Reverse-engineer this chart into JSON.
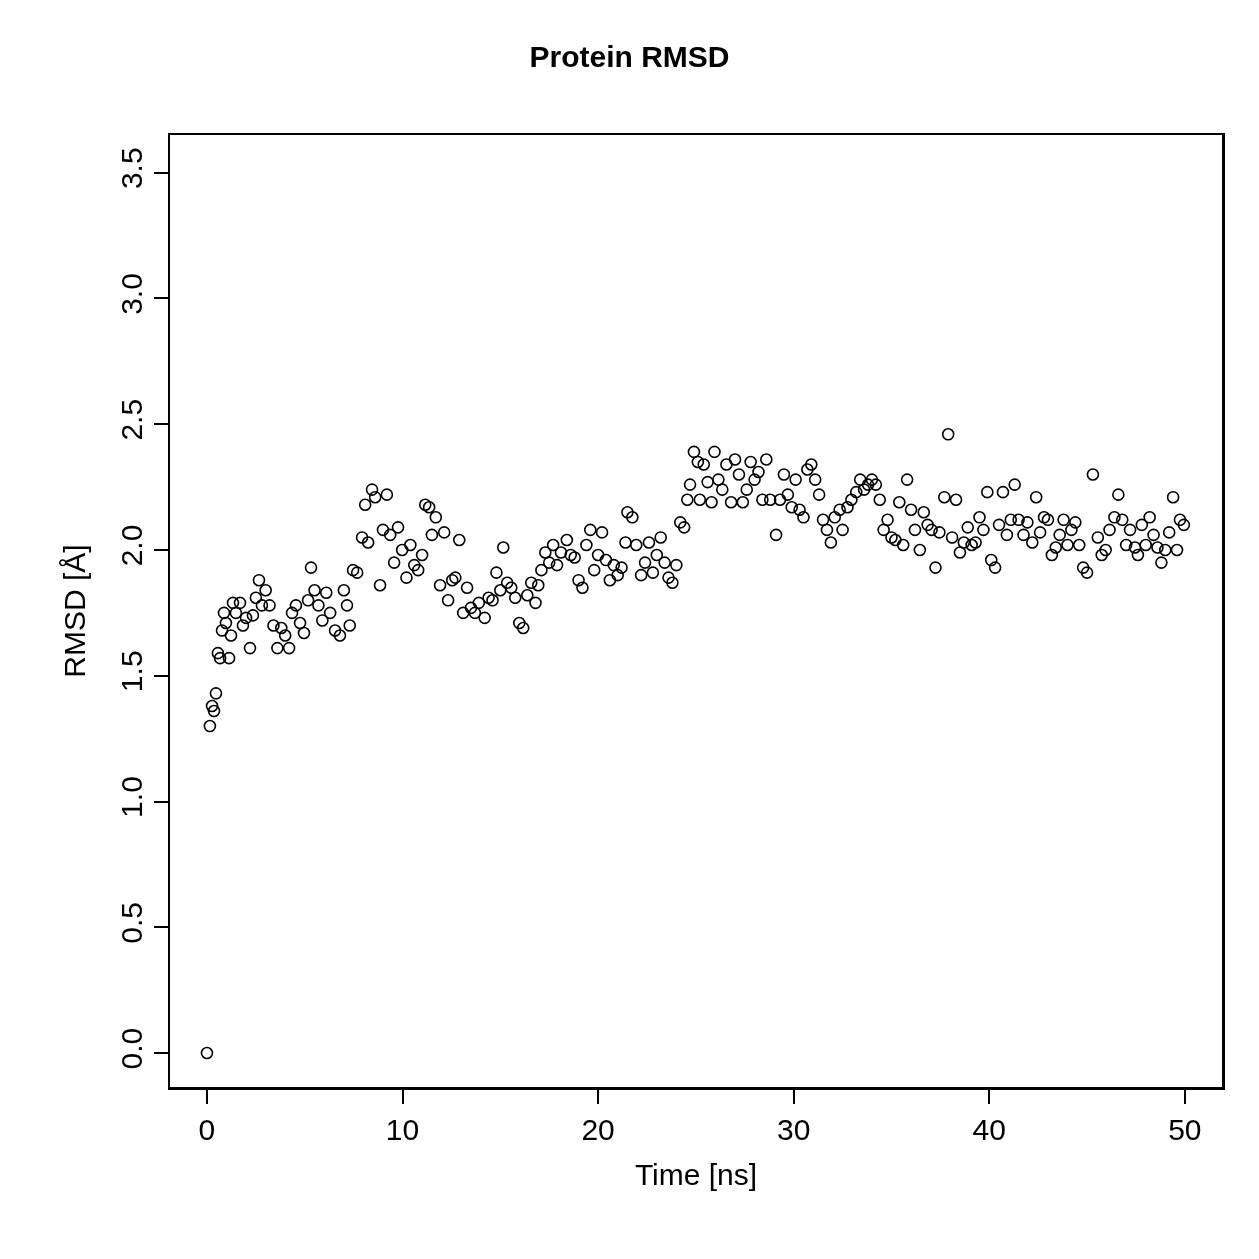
{
  "chart_data": {
    "type": "scatter",
    "title": "Protein RMSD",
    "xlabel": "Time [ns]",
    "ylabel": "RMSD [Å]",
    "x": [
      0,
      0.15,
      0.26,
      0.36,
      0.46,
      0.56,
      0.67,
      0.77,
      0.87,
      0.97,
      1.13,
      1.23,
      1.33,
      1.48,
      1.69,
      1.84,
      2.0,
      2.2,
      2.35,
      2.5,
      2.66,
      2.81,
      3.0,
      3.2,
      3.4,
      3.6,
      3.8,
      4.0,
      4.2,
      4.35,
      4.55,
      4.76,
      4.96,
      5.17,
      5.32,
      5.5,
      5.7,
      5.9,
      6.1,
      6.3,
      6.55,
      6.8,
      7.0,
      7.16,
      7.3,
      7.47,
      7.68,
      7.93,
      8.09,
      8.24,
      8.44,
      8.6,
      8.85,
      9.0,
      9.2,
      9.37,
      9.57,
      9.77,
      9.98,
      10.2,
      10.4,
      10.6,
      10.8,
      11.0,
      11.16,
      11.36,
      11.5,
      11.7,
      11.92,
      12.13,
      12.33,
      12.54,
      12.7,
      12.9,
      13.1,
      13.3,
      13.5,
      13.7,
      13.9,
      14.2,
      14.4,
      14.6,
      14.8,
      15.0,
      15.15,
      15.35,
      15.56,
      15.76,
      15.97,
      16.17,
      16.38,
      16.58,
      16.8,
      16.94,
      17.1,
      17.3,
      17.5,
      17.7,
      17.9,
      18.1,
      18.4,
      18.6,
      18.8,
      19.0,
      19.2,
      19.4,
      19.6,
      19.8,
      20.0,
      20.2,
      20.4,
      20.6,
      20.8,
      21.0,
      21.2,
      21.4,
      21.5,
      21.75,
      21.95,
      22.2,
      22.4,
      22.6,
      22.8,
      23.0,
      23.2,
      23.4,
      23.6,
      23.8,
      24.0,
      24.2,
      24.4,
      24.56,
      24.7,
      24.9,
      25.1,
      25.2,
      25.4,
      25.6,
      25.8,
      25.95,
      26.15,
      26.35,
      26.56,
      26.8,
      27.0,
      27.2,
      27.4,
      27.6,
      27.8,
      28.0,
      28.2,
      28.4,
      28.6,
      28.8,
      29.1,
      29.3,
      29.5,
      29.7,
      29.9,
      30.1,
      30.3,
      30.5,
      30.7,
      30.9,
      31.1,
      31.3,
      31.5,
      31.7,
      31.9,
      32.1,
      32.35,
      32.5,
      32.75,
      32.95,
      33.2,
      33.4,
      33.6,
      33.8,
      34.0,
      34.2,
      34.4,
      34.6,
      34.8,
      35.0,
      35.2,
      35.4,
      35.6,
      35.8,
      36.0,
      36.2,
      36.45,
      36.65,
      36.85,
      37.05,
      37.25,
      37.45,
      37.7,
      37.9,
      38.1,
      38.3,
      38.5,
      38.7,
      38.9,
      39.1,
      39.3,
      39.5,
      39.7,
      39.9,
      40.1,
      40.3,
      40.5,
      40.7,
      40.9,
      41.1,
      41.3,
      41.5,
      41.75,
      41.95,
      42.2,
      42.4,
      42.6,
      42.8,
      43.0,
      43.2,
      43.4,
      43.6,
      43.8,
      44.0,
      44.2,
      44.4,
      44.6,
      44.8,
      45.0,
      45.3,
      45.55,
      45.75,
      45.95,
      46.15,
      46.4,
      46.6,
      46.8,
      47.0,
      47.2,
      47.45,
      47.6,
      47.8,
      48.0,
      48.2,
      48.4,
      48.6,
      48.8,
      49.0,
      49.2,
      49.4,
      49.6,
      49.75,
      49.95
    ],
    "values": [
      0.0,
      1.3,
      1.38,
      1.36,
      1.43,
      1.59,
      1.57,
      1.68,
      1.75,
      1.71,
      1.57,
      1.66,
      1.79,
      1.75,
      1.79,
      1.7,
      1.73,
      1.61,
      1.74,
      1.81,
      1.88,
      1.78,
      1.84,
      1.78,
      1.7,
      1.61,
      1.69,
      1.66,
      1.61,
      1.75,
      1.78,
      1.71,
      1.67,
      1.8,
      1.93,
      1.84,
      1.78,
      1.72,
      1.83,
      1.75,
      1.68,
      1.66,
      1.84,
      1.78,
      1.7,
      1.92,
      1.91,
      2.05,
      2.18,
      2.03,
      2.24,
      2.21,
      1.86,
      2.08,
      2.22,
      2.06,
      1.95,
      2.09,
      2.0,
      1.89,
      2.02,
      1.94,
      1.92,
      1.98,
      2.18,
      2.17,
      2.06,
      2.13,
      1.86,
      2.07,
      1.8,
      1.88,
      1.89,
      2.04,
      1.75,
      1.85,
      1.77,
      1.75,
      1.79,
      1.73,
      1.81,
      1.8,
      1.91,
      1.84,
      2.01,
      1.87,
      1.85,
      1.81,
      1.71,
      1.69,
      1.82,
      1.87,
      1.79,
      1.86,
      1.92,
      1.99,
      1.95,
      2.02,
      1.94,
      1.99,
      2.04,
      1.98,
      1.97,
      1.88,
      1.85,
      2.02,
      2.08,
      1.92,
      1.98,
      2.07,
      1.96,
      1.88,
      1.94,
      1.9,
      1.93,
      2.03,
      2.15,
      2.13,
      2.02,
      1.9,
      1.95,
      2.03,
      1.91,
      1.98,
      2.05,
      1.95,
      1.89,
      1.87,
      1.94,
      2.11,
      2.09,
      2.2,
      2.26,
      2.39,
      2.35,
      2.2,
      2.34,
      2.27,
      2.19,
      2.39,
      2.28,
      2.24,
      2.34,
      2.19,
      2.36,
      2.3,
      2.19,
      2.24,
      2.35,
      2.28,
      2.31,
      2.2,
      2.36,
      2.2,
      2.06,
      2.2,
      2.3,
      2.22,
      2.17,
      2.28,
      2.16,
      2.13,
      2.32,
      2.34,
      2.28,
      2.22,
      2.12,
      2.08,
      2.03,
      2.13,
      2.16,
      2.08,
      2.17,
      2.2,
      2.23,
      2.28,
      2.24,
      2.26,
      2.28,
      2.26,
      2.2,
      2.08,
      2.12,
      2.05,
      2.04,
      2.19,
      2.02,
      2.28,
      2.16,
      2.08,
      2.0,
      2.15,
      2.1,
      2.08,
      1.93,
      2.07,
      2.21,
      2.46,
      2.05,
      2.2,
      1.99,
      2.03,
      2.09,
      2.02,
      2.03,
      2.13,
      2.08,
      2.23,
      1.96,
      1.93,
      2.1,
      2.23,
      2.06,
      2.12,
      2.26,
      2.12,
      2.06,
      2.11,
      2.03,
      2.21,
      2.07,
      2.13,
      2.12,
      1.98,
      2.01,
      2.06,
      2.12,
      2.02,
      2.08,
      2.11,
      2.02,
      1.93,
      1.91,
      2.3,
      2.05,
      1.98,
      2.0,
      2.08,
      2.13,
      2.22,
      2.12,
      2.02,
      2.08,
      2.01,
      1.98,
      2.1,
      2.02,
      2.13,
      2.06,
      2.01,
      1.95,
      2.0,
      2.07,
      2.21,
      2.0,
      2.12,
      2.1
    ],
    "color": "#000000",
    "marker": "circle",
    "grid": false,
    "xlim": [
      -1.89,
      51.9
    ],
    "xticks": [
      0,
      10,
      20,
      30,
      40,
      50
    ],
    "ylim": [
      -0.135,
      3.65
    ],
    "yticks": [
      {
        "value": 0,
        "label": "0.0"
      },
      {
        "value": 0.5,
        "label": "0.5"
      },
      {
        "value": 1,
        "label": "1.0"
      },
      {
        "value": 1.5,
        "label": "1.5"
      },
      {
        "value": 2,
        "label": "2.0"
      },
      {
        "value": 2.5,
        "label": "2.5"
      },
      {
        "value": 3,
        "label": "3.0"
      },
      {
        "value": 3.5,
        "label": "3.5"
      }
    ]
  }
}
